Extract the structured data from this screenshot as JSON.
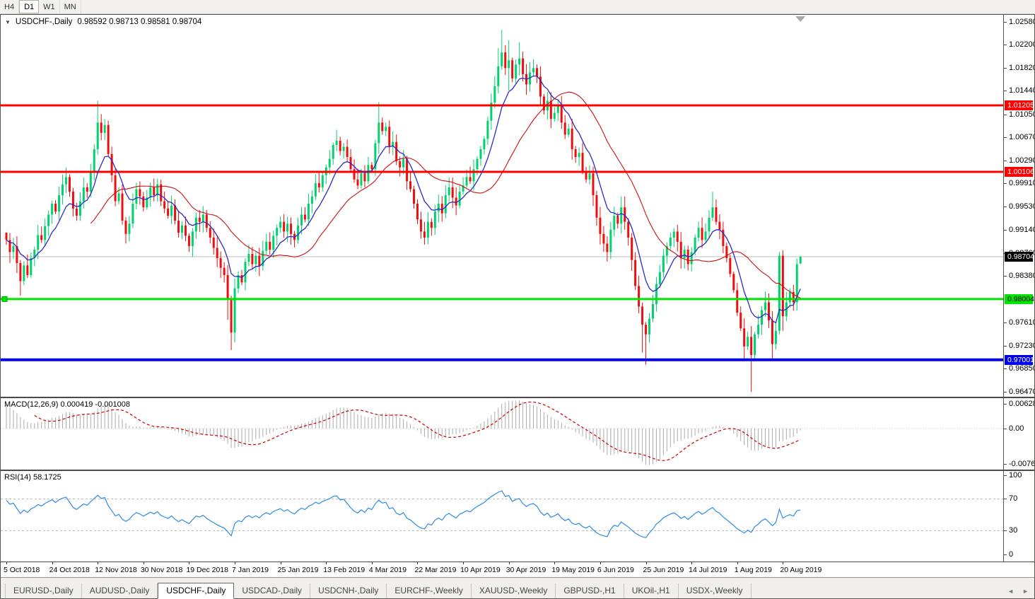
{
  "toolbar": {
    "buttons": [
      {
        "label": "H4",
        "active": false
      },
      {
        "label": "D1",
        "active": true
      },
      {
        "label": "W1",
        "active": false
      },
      {
        "label": "MN",
        "active": false
      }
    ]
  },
  "title": {
    "symbol": "USDCHF-,Daily",
    "ohlc": "0.98592 0.98713 0.98581 0.98704"
  },
  "chart_data": {
    "type": "candlestick",
    "symbol": "USDCHF",
    "timeframe": "Daily",
    "colors": {
      "bull": "#00d26f",
      "bear": "#ef0e0e",
      "ma_fast": "#2a2ac4",
      "ma_slow": "#cc1111",
      "hline_red": "#fe0000",
      "hline_green": "#00e400",
      "hline_blue": "#0000ee",
      "price_line": "#bcbcbc",
      "macd_bar": "#ababab",
      "macd_signal": "#cc0000",
      "rsi_line": "#2e8be6",
      "level_dash": "#b4b4b4"
    },
    "price_axis": {
      "view_max": 1.027,
      "view_min": 0.9639,
      "ticks": [
        {
          "label": "1.02580",
          "value": 1.0258
        },
        {
          "label": "1.02200",
          "value": 1.022
        },
        {
          "label": "1.01820",
          "value": 1.0182
        },
        {
          "label": "1.01440",
          "value": 1.0144
        },
        {
          "label": "1.01050",
          "value": 1.0105
        },
        {
          "label": "1.00670",
          "value": 1.0067
        },
        {
          "label": "1.00290",
          "value": 1.0029
        },
        {
          "label": "0.99910",
          "value": 0.9991
        },
        {
          "label": "0.99530",
          "value": 0.9953
        },
        {
          "label": "0.99140",
          "value": 0.9914
        },
        {
          "label": "0.98760",
          "value": 0.9876
        },
        {
          "label": "0.98380",
          "value": 0.9838
        },
        {
          "label": "0.97610",
          "value": 0.9761
        },
        {
          "label": "0.97230",
          "value": 0.9723
        },
        {
          "label": "0.96850",
          "value": 0.9685
        },
        {
          "label": "0.96470",
          "value": 0.9647
        }
      ]
    },
    "current_price": {
      "label": "0.98704",
      "value": 0.98704
    },
    "hlines": [
      {
        "label": "1.01205",
        "value": 1.01205,
        "color": "#fe0000",
        "width": 3,
        "text": "#ffffff"
      },
      {
        "label": "1.00106",
        "value": 1.00106,
        "color": "#fe0000",
        "width": 3,
        "text": "#ffffff"
      },
      {
        "label": "0.98004",
        "value": 0.98004,
        "color": "#00e400",
        "width": 3,
        "text": "#000000",
        "handle": true
      },
      {
        "label": "0.97001",
        "value": 0.97001,
        "color": "#0000ee",
        "width": 4,
        "text": "#ffffff"
      }
    ],
    "date_axis": {
      "labels": [
        {
          "text": "5 Oct 2018",
          "bar": 0
        },
        {
          "text": "24 Oct 2018",
          "bar": 13
        },
        {
          "text": "12 Nov 2018",
          "bar": 26
        },
        {
          "text": "30 Nov 2018",
          "bar": 39
        },
        {
          "text": "19 Dec 2018",
          "bar": 52
        },
        {
          "text": "7 Jan 2019",
          "bar": 65
        },
        {
          "text": "25 Jan 2019",
          "bar": 78
        },
        {
          "text": "13 Feb 2019",
          "bar": 91
        },
        {
          "text": "4 Mar 2019",
          "bar": 104
        },
        {
          "text": "22 Mar 2019",
          "bar": 117
        },
        {
          "text": "10 Apr 2019",
          "bar": 130
        },
        {
          "text": "30 Apr 2019",
          "bar": 143
        },
        {
          "text": "19 May 2019",
          "bar": 156
        },
        {
          "text": "6 Jun 2019",
          "bar": 169
        },
        {
          "text": "25 Jun 2019",
          "bar": 182
        },
        {
          "text": "14 Jul 2019",
          "bar": 195
        },
        {
          "text": "1 Aug 2019",
          "bar": 208
        },
        {
          "text": "20 Aug 2019",
          "bar": 221
        }
      ]
    },
    "closes": [
      0.9898,
      0.9878,
      0.9888,
      0.986,
      0.983,
      0.9856,
      0.984,
      0.9868,
      0.9882,
      0.9906,
      0.9898,
      0.9921,
      0.994,
      0.9958,
      0.9945,
      0.9972,
      0.999,
      1.0002,
      0.9978,
      0.995,
      0.9938,
      0.9962,
      0.9985,
      0.9978,
      1.0012,
      1.0048,
      1.0092,
      1.0075,
      1.0088,
      1.004,
      1.0005,
      0.9962,
      0.9975,
      0.993,
      0.9908,
      0.9925,
      0.9958,
      0.9982,
      0.997,
      0.9952,
      0.9968,
      0.9985,
      0.9972,
      0.999,
      0.9962,
      0.995,
      0.9938,
      0.9955,
      0.993,
      0.991,
      0.9922,
      0.9905,
      0.9888,
      0.9912,
      0.9935,
      0.9928,
      0.994,
      0.9918,
      0.9902,
      0.9885,
      0.9868,
      0.9852,
      0.984,
      0.98,
      0.9745,
      0.9818,
      0.984,
      0.9828,
      0.9862,
      0.9875,
      0.9858,
      0.9872,
      0.9855,
      0.988,
      0.9895,
      0.9882,
      0.9905,
      0.9918,
      0.9928,
      0.9912,
      0.9925,
      0.9908,
      0.9898,
      0.9922,
      0.994,
      0.9932,
      0.9958,
      0.997,
      0.9992,
      0.9985,
      1.0005,
      1.0018,
      1.0032,
      1.0055,
      1.0062,
      1.0045,
      1.0052,
      1.0035,
      1.0015,
      0.9998,
      0.9988,
      1.0008,
      0.9995,
      1.0022,
      1.0015,
      1.0058,
      1.0092,
      1.0078,
      1.0085,
      1.0052,
      1.006,
      1.0028,
      1.0018,
      1.0032,
      0.9995,
      0.9982,
      0.9958,
      0.9932,
      0.9912,
      0.9902,
      0.9928,
      0.9918,
      0.9945,
      0.9958,
      0.9942,
      0.9972,
      0.9985,
      0.9968,
      0.9955,
      0.9978,
      0.9988,
      1.0002,
      0.9995,
      1.0015,
      1.0032,
      1.0048,
      1.0065,
      1.0095,
      1.0125,
      1.0152,
      1.0185,
      1.0208,
      1.0182,
      1.0195,
      1.0165,
      1.0188,
      1.0198,
      1.0172,
      1.0155,
      1.0175,
      1.0182,
      1.0168,
      1.0135,
      1.0112,
      1.0128,
      1.0098,
      1.0108,
      1.0122,
      1.0092,
      1.0072,
      1.0082,
      1.0048,
      1.0035,
      1.0042,
      1.0012,
      0.9998,
      1.0008,
      0.9972,
      0.9935,
      0.9908,
      0.9892,
      0.9878,
      0.9915,
      0.9938,
      0.9925,
      0.9952,
      0.9928,
      0.9902,
      0.9865,
      0.9822,
      0.9788,
      0.9758,
      0.9742,
      0.9768,
      0.9792,
      0.9825,
      0.9845,
      0.9872,
      0.9888,
      0.9902,
      0.9912,
      0.9895,
      0.9868,
      0.9882,
      0.9858,
      0.9878,
      0.9902,
      0.9918,
      0.9898,
      0.9912,
      0.9935,
      0.9952,
      0.9928,
      0.9915,
      0.9888,
      0.9868,
      0.9842,
      0.9815,
      0.9778,
      0.9752,
      0.9722,
      0.9738,
      0.9708,
      0.9742,
      0.9758,
      0.9782,
      0.9795,
      0.9765,
      0.9726,
      0.9748,
      0.9872,
      0.9772,
      0.9795,
      0.9812,
      0.9795,
      0.9858,
      0.98704
    ],
    "ohlc_overrides": {
      "0": {
        "o": 0.991
      },
      "4": {
        "l": 0.9806
      },
      "26": {
        "h": 1.0128
      },
      "63": {
        "l": 0.9766
      },
      "64": {
        "o": 0.98,
        "h": 0.9806,
        "l": 0.9716,
        "c": 0.9745
      },
      "94": {
        "h": 1.008
      },
      "106": {
        "h": 1.0126
      },
      "140": {
        "h": 1.0215
      },
      "141": {
        "h": 1.0245
      },
      "143": {
        "h": 1.0228,
        "l": 1.0145
      },
      "146": {
        "h": 1.0225
      },
      "181": {
        "l": 0.9712
      },
      "182": {
        "l": 0.9692
      },
      "201": {
        "h": 0.9978
      },
      "210": {
        "l": 0.9698
      },
      "212": {
        "l": 0.9647
      },
      "218": {
        "l": 0.9701
      },
      "220": {
        "h": 0.9878
      },
      "221": {
        "l": 0.9748
      },
      "226": {
        "o": 0.98592,
        "h": 0.98713,
        "l": 0.98581,
        "c": 0.98704
      }
    },
    "moving_averages": [
      {
        "name": "fast-ema",
        "period": 9,
        "method": "ema",
        "color": "#2a2ac4",
        "width": 1.3
      },
      {
        "name": "slow-sma",
        "period": 25,
        "method": "sma",
        "color": "#cc1111",
        "width": 1.1
      }
    ],
    "macd": {
      "label": "MACD(12,26,9) 0.000419 -0.001008",
      "fast": 12,
      "slow": 26,
      "signal": 9,
      "value": 0.000419,
      "signal_value": -0.001008,
      "axis_ticks": [
        "0.006286",
        "0.00",
        "-0.00762"
      ]
    },
    "rsi": {
      "label": "RSI(14) 58.1725",
      "period": 14,
      "value": 58.1725,
      "axis_ticks": [
        {
          "label": "100",
          "value": 100
        },
        {
          "label": "70",
          "value": 70
        },
        {
          "label": "30",
          "value": 30
        },
        {
          "label": "0",
          "value": 0
        }
      ],
      "levels": [
        70,
        30
      ]
    }
  },
  "tabs": {
    "items": [
      {
        "label": "EURUSD-,Daily",
        "active": false
      },
      {
        "label": "AUDUSD-,Daily",
        "active": false
      },
      {
        "label": "USDCHF-,Daily",
        "active": true
      },
      {
        "label": "USDCAD-,Daily",
        "active": false
      },
      {
        "label": "USDCNH-,Daily",
        "active": false
      },
      {
        "label": "EURCHF-,Weekly",
        "active": false
      },
      {
        "label": "XAUUSD-,Weekly",
        "active": false
      },
      {
        "label": "GBPUSD-,H1",
        "active": false
      },
      {
        "label": "UKOil-,H1",
        "active": false
      },
      {
        "label": "USDX-,Weekly",
        "active": false
      }
    ],
    "scroll_left": "◄",
    "scroll_right": "►"
  }
}
